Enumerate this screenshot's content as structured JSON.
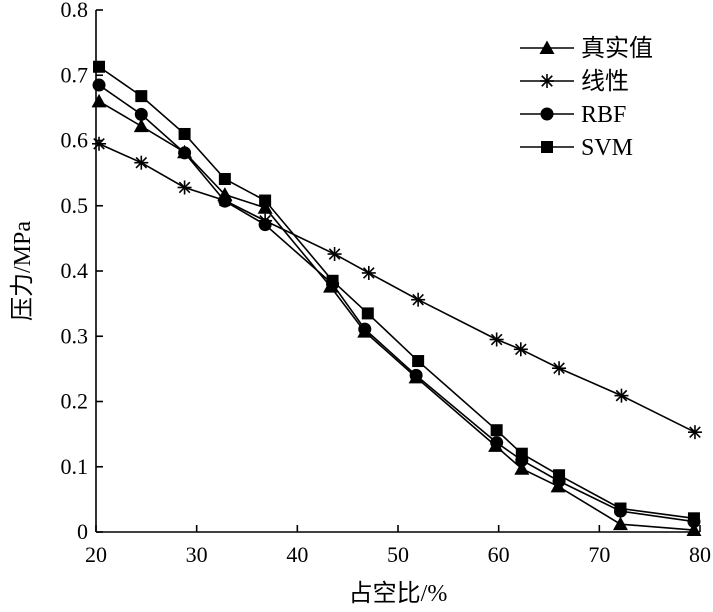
{
  "chart_data": {
    "type": "line",
    "title": "",
    "xlabel": "占空比/%",
    "ylabel": "压力/MPa",
    "xlim": [
      20,
      80
    ],
    "ylim": [
      0,
      0.8
    ],
    "xticks": [
      "20",
      "30",
      "40",
      "50",
      "60",
      "70",
      "80"
    ],
    "yticks": [
      "0",
      "0.1",
      "0.2",
      "0.3",
      "0.4",
      "0.5",
      "0.6",
      "0.7",
      "0.8"
    ],
    "grid": false,
    "legend_position": "top-right",
    "series": [
      {
        "name": "真实值",
        "marker": "triangle",
        "x": [
          20.3,
          24.5,
          28.8,
          32.8,
          36.8,
          43.3,
          46.7,
          51.8,
          59.7,
          62.3,
          65.9,
          72.1,
          79.4
        ],
        "y": [
          0.66,
          0.622,
          0.582,
          0.517,
          0.497,
          0.376,
          0.307,
          0.237,
          0.132,
          0.097,
          0.07,
          0.012,
          0.003
        ]
      },
      {
        "name": "线性",
        "marker": "star",
        "x": [
          20.3,
          24.5,
          28.8,
          32.8,
          36.8,
          43.7,
          47.1,
          52.0,
          59.8,
          62.2,
          66.0,
          72.2,
          79.5
        ],
        "y": [
          0.595,
          0.566,
          0.528,
          0.508,
          0.477,
          0.426,
          0.397,
          0.356,
          0.295,
          0.28,
          0.251,
          0.209,
          0.153
        ]
      },
      {
        "name": "RBF",
        "marker": "circle",
        "x": [
          20.3,
          24.5,
          28.8,
          32.8,
          36.8,
          43.5,
          46.7,
          51.8,
          59.8,
          62.3,
          66.0,
          72.1,
          79.4
        ],
        "y": [
          0.685,
          0.64,
          0.581,
          0.507,
          0.471,
          0.38,
          0.311,
          0.24,
          0.137,
          0.11,
          0.078,
          0.032,
          0.016
        ]
      },
      {
        "name": "SVM",
        "marker": "square",
        "x": [
          20.3,
          24.5,
          28.8,
          32.8,
          36.8,
          43.5,
          47.0,
          52.0,
          59.8,
          62.3,
          66.0,
          72.1,
          79.4
        ],
        "y": [
          0.713,
          0.668,
          0.61,
          0.541,
          0.508,
          0.385,
          0.335,
          0.262,
          0.156,
          0.12,
          0.087,
          0.036,
          0.021
        ]
      }
    ]
  }
}
